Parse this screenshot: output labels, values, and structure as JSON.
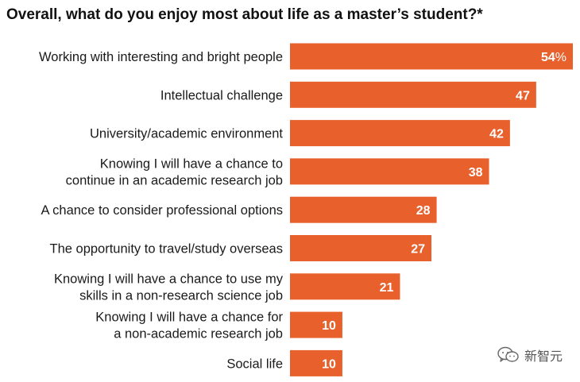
{
  "chart_data": {
    "type": "bar",
    "orientation": "horizontal",
    "title": "Overall, what do you enjoy most about life as a master’s student?*",
    "categories": [
      [
        "Working with interesting and bright people"
      ],
      [
        "Intellectual challenge"
      ],
      [
        "University/academic environment"
      ],
      [
        "Knowing I will have a chance to",
        "continue in an academic research job"
      ],
      [
        "A chance to consider professional options"
      ],
      [
        "The opportunity to travel/study overseas"
      ],
      [
        "Knowing I will have a chance to use my",
        "skills in a non-research science job"
      ],
      [
        "Knowing I will have a chance for",
        "a non-academic research job"
      ],
      [
        "Social life"
      ]
    ],
    "values": [
      54,
      47,
      42,
      38,
      28,
      27,
      21,
      10,
      10
    ],
    "value_unit": "%",
    "unit_shown_on": "first bar only",
    "xlim": [
      0,
      54
    ],
    "grid": false,
    "legend": "none",
    "bar_color": "#E8602C"
  },
  "watermark": {
    "text": "新智元",
    "icon": "wechat-icon"
  }
}
